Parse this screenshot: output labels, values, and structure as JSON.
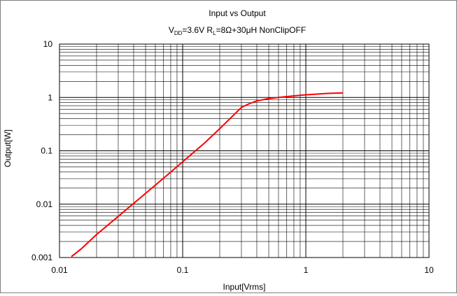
{
  "chart_data": {
    "type": "line",
    "title": "Input vs Output",
    "subtitle": {
      "pre_vdd": "V",
      "vdd_sub": "DD",
      "mid": "=3.6V R",
      "rl_sub": "L",
      "post": "=8Ω+30μH NonClipOFF"
    },
    "xlabel": "Input[Vrms]",
    "ylabel": "Output[W]",
    "x_scale": "log",
    "y_scale": "log",
    "xlim": [
      0.01,
      10
    ],
    "ylim": [
      0.001,
      10
    ],
    "x_ticks": [
      {
        "value": 0.01,
        "label": "0.01"
      },
      {
        "value": 0.1,
        "label": "0.1"
      },
      {
        "value": 1,
        "label": "1"
      },
      {
        "value": 10,
        "label": "10"
      }
    ],
    "y_ticks": [
      {
        "value": 0.001,
        "label": "0.001"
      },
      {
        "value": 0.01,
        "label": "0.01"
      },
      {
        "value": 0.1,
        "label": "0.1"
      },
      {
        "value": 1,
        "label": "1"
      },
      {
        "value": 10,
        "label": "10"
      }
    ],
    "grid": true,
    "legend": "none",
    "line_color": "#ff0000",
    "series": [
      {
        "x": [
          0.0125,
          0.015,
          0.02,
          0.03,
          0.05,
          0.08,
          0.1,
          0.15,
          0.2,
          0.25,
          0.3,
          0.35,
          0.4,
          0.5,
          0.6,
          0.8,
          1.0,
          1.2,
          1.5,
          2.0
        ],
        "values": [
          0.00104,
          0.00145,
          0.0027,
          0.0059,
          0.0159,
          0.0398,
          0.062,
          0.139,
          0.26,
          0.43,
          0.65,
          0.77,
          0.86,
          0.95,
          1.0,
          1.07,
          1.12,
          1.15,
          1.19,
          1.22
        ]
      }
    ]
  }
}
